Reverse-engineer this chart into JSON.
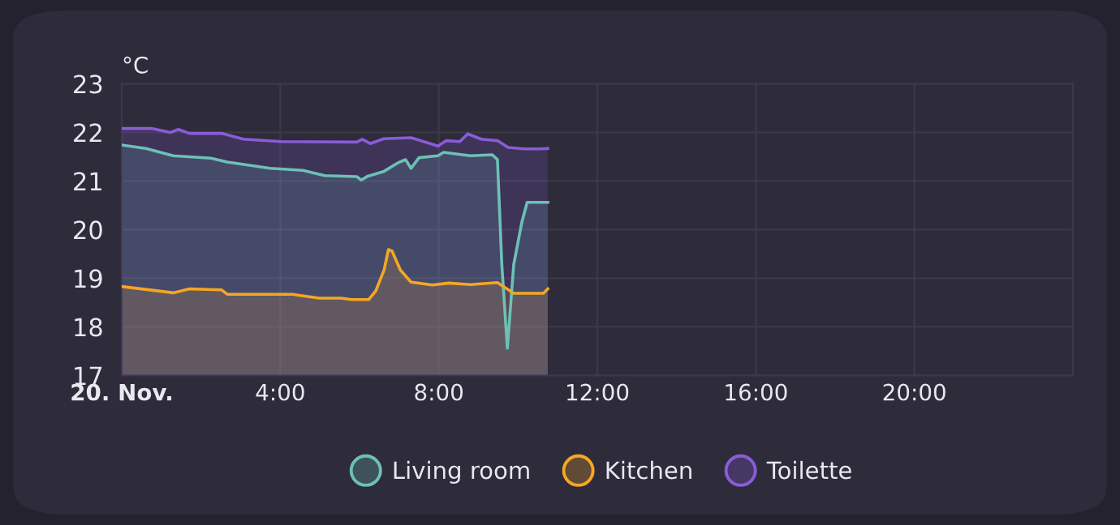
{
  "chart_data": {
    "type": "area",
    "ylabel": "°C",
    "xlim": [
      0,
      24
    ],
    "ylim": [
      17,
      23
    ],
    "xticks": [
      {
        "value": 0,
        "label": "20. Nov."
      },
      {
        "value": 4,
        "label": "4:00"
      },
      {
        "value": 8,
        "label": "8:00"
      },
      {
        "value": 12,
        "label": "12:00"
      },
      {
        "value": 16,
        "label": "16:00"
      },
      {
        "value": 20,
        "label": "20:00"
      }
    ],
    "yticks": [
      17,
      18,
      19,
      20,
      21,
      22,
      23
    ],
    "grid": true,
    "legend": "bottom",
    "marker": "none",
    "line_style": "solid",
    "series": [
      {
        "name": "Living room",
        "color": "#6cc1b6",
        "x": [
          0,
          0.61,
          1.3,
          2.25,
          2.66,
          3.75,
          4.57,
          5.12,
          5.93,
          6.04,
          6.21,
          6.62,
          6.96,
          7.16,
          7.3,
          7.5,
          7.98,
          8.12,
          8.8,
          9.35,
          9.48,
          9.59,
          9.73,
          9.89,
          10.1,
          10.23,
          10.75
        ],
        "values": [
          21.74,
          21.67,
          21.52,
          21.47,
          21.39,
          21.26,
          21.22,
          21.11,
          21.09,
          21.02,
          21.1,
          21.2,
          21.37,
          21.44,
          21.26,
          21.48,
          21.52,
          21.59,
          21.52,
          21.54,
          21.44,
          19.28,
          17.56,
          19.28,
          20.17,
          20.56,
          20.56
        ]
      },
      {
        "name": "Kitchen",
        "color": "#f5a623",
        "x": [
          0,
          1.3,
          1.71,
          2.52,
          2.66,
          4.3,
          4.98,
          5.53,
          5.8,
          6.23,
          6.41,
          6.62,
          6.73,
          6.82,
          7.03,
          7.3,
          7.84,
          8.25,
          8.8,
          9.48,
          9.89,
          10.64,
          10.75
        ],
        "values": [
          18.83,
          18.7,
          18.78,
          18.76,
          18.67,
          18.67,
          18.59,
          18.59,
          18.56,
          18.56,
          18.74,
          19.17,
          19.59,
          19.56,
          19.17,
          18.92,
          18.86,
          18.9,
          18.87,
          18.91,
          18.69,
          18.69,
          18.78
        ]
      },
      {
        "name": "Toilette",
        "color": "#8a5cd8",
        "x": [
          0,
          0.75,
          1.23,
          1.43,
          1.71,
          2.52,
          3.07,
          4.02,
          5.93,
          6.07,
          6.27,
          6.61,
          7.3,
          7.98,
          8.19,
          8.53,
          8.73,
          9.07,
          9.48,
          9.75,
          10.16,
          10.57,
          10.75
        ],
        "values": [
          22.08,
          22.08,
          22.0,
          22.06,
          21.98,
          21.98,
          21.86,
          21.81,
          21.8,
          21.86,
          21.77,
          21.87,
          21.89,
          21.72,
          21.83,
          21.81,
          21.97,
          21.86,
          21.83,
          21.69,
          21.66,
          21.66,
          21.67
        ]
      }
    ]
  }
}
